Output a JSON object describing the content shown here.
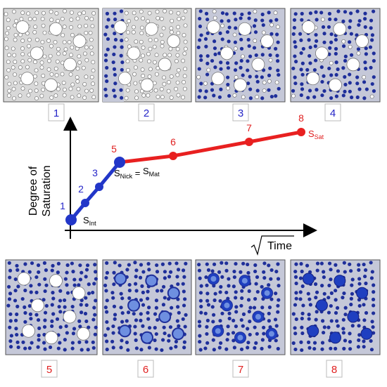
{
  "panels": [
    {
      "label": "1"
    },
    {
      "label": "2"
    },
    {
      "label": "3"
    },
    {
      "label": "4"
    },
    {
      "label": "5"
    },
    {
      "label": "6"
    },
    {
      "label": "7"
    },
    {
      "label": "8"
    }
  ],
  "axes": {
    "y_label": [
      "Degree of",
      "Saturation"
    ],
    "x_label": "Time"
  },
  "points": [
    {
      "label": "1"
    },
    {
      "label": "2"
    },
    {
      "label": "3"
    },
    {
      "label": "5"
    },
    {
      "label": "6"
    },
    {
      "label": "7"
    },
    {
      "label": "8"
    }
  ],
  "annotations": {
    "s_int": {
      "base": "S",
      "sub": "Int"
    },
    "s_nick": {
      "base": "S",
      "sub": "Nick",
      "eq": " = ",
      "base2": "S",
      "sub2": "Mat"
    },
    "s_sat": {
      "base": "S",
      "sub": "Sat"
    }
  }
}
